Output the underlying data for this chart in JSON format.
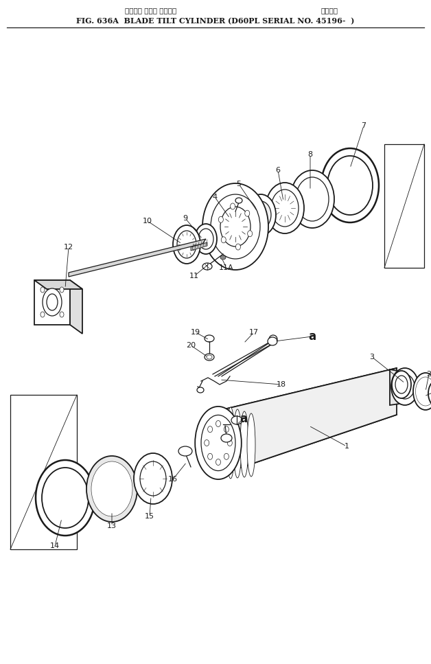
{
  "title_jp1": "ブレード チルト シリンダ",
  "title_jp2": "適用号機",
  "title_en": "FIG. 636A  BLADE TILT CYLINDER (D60PL SERIAL NO. 45196-  )",
  "bg_color": "#ffffff",
  "lc": "#1a1a1a",
  "fig_w": 6.28,
  "fig_h": 9.67,
  "dpi": 100
}
